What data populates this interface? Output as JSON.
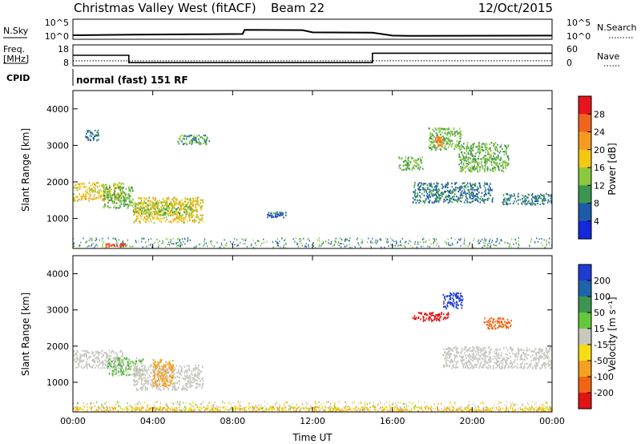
{
  "header": {
    "station": "Christmas Valley West (fitACF)",
    "beam": "Beam 22",
    "date": "12/Oct/2015"
  },
  "noise_panel": {
    "left_label": "N.Sky",
    "right_label": "N.Search",
    "left_ticks": [
      "10^5",
      "10^0"
    ],
    "right_ticks": [
      "10^5",
      "10^0"
    ]
  },
  "freq_panel": {
    "left_label_1": "Freq.",
    "left_label_2": "[MHz]",
    "right_label": "Nave",
    "left_ticks": [
      "18",
      "8"
    ],
    "right_ticks": [
      "60",
      "0"
    ]
  },
  "cpid": {
    "label": "CPID",
    "value": "normal (fast) 151 RF"
  },
  "axes": {
    "ylabel": "Slant Range [km]",
    "xlabel": "Time UT",
    "x_ticks": [
      "00:00",
      "04:00",
      "08:00",
      "12:00",
      "16:00",
      "20:00",
      "00:00"
    ],
    "y_ticks": [
      "4000",
      "3000",
      "2000",
      "1000"
    ]
  },
  "power_colorbar": {
    "label": "Power [dB]",
    "ticks": [
      "28",
      "24",
      "20",
      "16",
      "12",
      "8",
      "4"
    ],
    "colors": [
      "#e8141c",
      "#f0641e",
      "#f59a1e",
      "#f5c814",
      "#8cc83c",
      "#3c9650",
      "#1e5aaa",
      "#1428dc"
    ]
  },
  "velocity_colorbar": {
    "label": "Velocity [m s⁻¹]",
    "ticks": [
      "200",
      "100",
      "50",
      "15",
      "-15",
      "-50",
      "-100",
      "-200"
    ],
    "colors": [
      "#1e3cd2",
      "#1e64aa",
      "#3c9650",
      "#64c83c",
      "#c8c8c0",
      "#f5dc14",
      "#f5a01e",
      "#f06414",
      "#e01414"
    ]
  },
  "chart_data": {
    "type": "heatmap",
    "x_range_hours": [
      0,
      24
    ],
    "y_range_km": [
      180,
      4500
    ],
    "noise_sky_log": [
      [
        0,
        0.5
      ],
      [
        3,
        0.7
      ],
      [
        6,
        0.8
      ],
      [
        8.5,
        0.9
      ],
      [
        8.6,
        2.2
      ],
      [
        11.5,
        2.1
      ],
      [
        12,
        1.4
      ],
      [
        15,
        1.3
      ],
      [
        16,
        0.4
      ],
      [
        17,
        0.3
      ],
      [
        24,
        0.4
      ]
    ],
    "freq_mhz": [
      [
        0,
        13
      ],
      [
        2.8,
        13
      ],
      [
        2.8,
        9.5
      ],
      [
        15,
        9.5
      ],
      [
        15,
        14
      ],
      [
        24,
        14
      ]
    ],
    "nave": [
      [
        0,
        14
      ],
      [
        24,
        14
      ]
    ],
    "power_regions": [
      {
        "t0": 0,
        "t1": 2.5,
        "r0": 1500,
        "r1": 2000,
        "power": 18
      },
      {
        "t0": 1.5,
        "t1": 3,
        "r0": 1300,
        "r1": 1900,
        "power": 12
      },
      {
        "t0": 3,
        "t1": 6.5,
        "r0": 900,
        "r1": 1600,
        "power": 18
      },
      {
        "t0": 3,
        "t1": 6,
        "r0": 1100,
        "r1": 1450,
        "power": 14
      },
      {
        "t0": 1.6,
        "t1": 2.6,
        "r0": 250,
        "r1": 330,
        "power": 28
      },
      {
        "t0": 5.2,
        "t1": 6.8,
        "r0": 3050,
        "r1": 3300,
        "power": 10
      },
      {
        "t0": 0.6,
        "t1": 1.3,
        "r0": 3150,
        "r1": 3450,
        "power": 8
      },
      {
        "t0": 9.7,
        "t1": 10.7,
        "r0": 1050,
        "r1": 1200,
        "power": 6
      },
      {
        "t0": 16.3,
        "t1": 17.5,
        "r0": 2350,
        "r1": 2700,
        "power": 12
      },
      {
        "t0": 17.8,
        "t1": 19.4,
        "r0": 2900,
        "r1": 3500,
        "power": 12
      },
      {
        "t0": 18.1,
        "t1": 18.5,
        "r0": 3000,
        "r1": 3250,
        "power": 24
      },
      {
        "t0": 19.3,
        "t1": 21.8,
        "r0": 2300,
        "r1": 3100,
        "power": 12
      },
      {
        "t0": 17,
        "t1": 21,
        "r0": 1450,
        "r1": 2000,
        "power": 8
      },
      {
        "t0": 21.5,
        "t1": 24,
        "r0": 1400,
        "r1": 1700,
        "power": 8
      }
    ],
    "velocity_regions": [
      {
        "t0": 0,
        "t1": 2.5,
        "r0": 1400,
        "r1": 1900,
        "velocity": 0
      },
      {
        "t0": 1.7,
        "t1": 3.5,
        "r0": 1200,
        "r1": 1700,
        "velocity": 20
      },
      {
        "t0": 3,
        "t1": 6.5,
        "r0": 800,
        "r1": 1500,
        "velocity": 0
      },
      {
        "t0": 4,
        "t1": 5,
        "r0": 900,
        "r1": 1650,
        "velocity": -60
      },
      {
        "t0": 17,
        "t1": 18.8,
        "r0": 2700,
        "r1": 2950,
        "velocity": -250
      },
      {
        "t0": 18.5,
        "t1": 19.5,
        "r0": 3050,
        "r1": 3500,
        "velocity": 250
      },
      {
        "t0": 20.5,
        "t1": 22,
        "r0": 2500,
        "r1": 2800,
        "velocity": -120
      },
      {
        "t0": 18.5,
        "t1": 24,
        "r0": 1400,
        "r1": 2000,
        "velocity": 0
      },
      {
        "t0": 0,
        "t1": 24,
        "r0": 200,
        "r1": 340,
        "velocity": -30
      }
    ]
  }
}
